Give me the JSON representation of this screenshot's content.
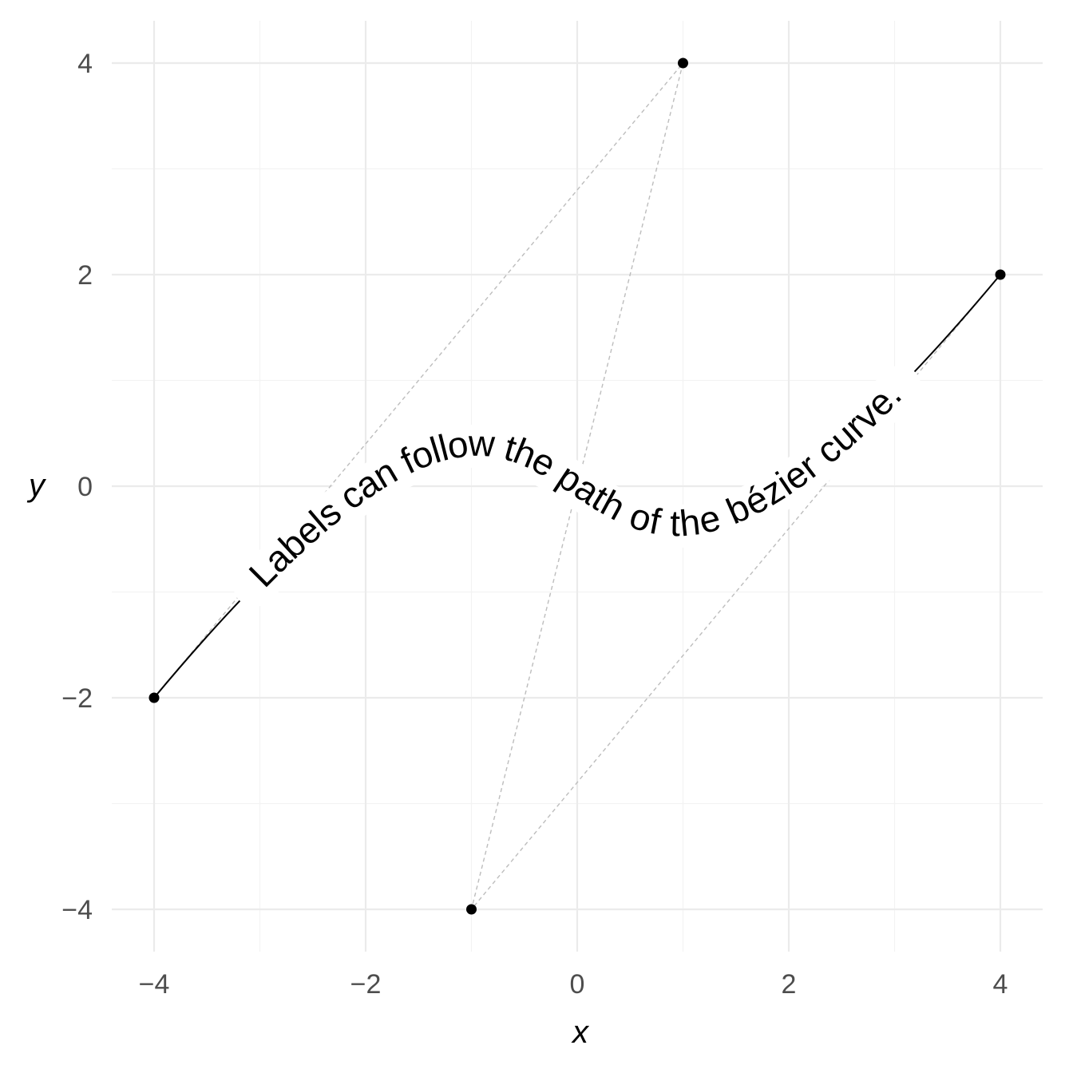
{
  "chart_data": {
    "type": "line",
    "title": "",
    "xlabel": "x",
    "ylabel": "y",
    "xlim": [
      -4.4,
      4.4
    ],
    "ylim": [
      -4.4,
      4.4
    ],
    "x_ticks": [
      -4,
      -2,
      0,
      2,
      4
    ],
    "y_ticks": [
      -4,
      -2,
      0,
      2,
      4
    ],
    "x_tick_labels": [
      "−4",
      "−2",
      "0",
      "2",
      "4"
    ],
    "y_tick_labels": [
      "−4",
      "−2",
      "0",
      "2",
      "4"
    ],
    "grid": true,
    "control_points": [
      {
        "x": -4,
        "y": -2
      },
      {
        "x": 1,
        "y": 4
      },
      {
        "x": -1,
        "y": -4
      },
      {
        "x": 4,
        "y": 2
      }
    ],
    "curve_label": "Labels can follow the path of the bézier curve."
  }
}
